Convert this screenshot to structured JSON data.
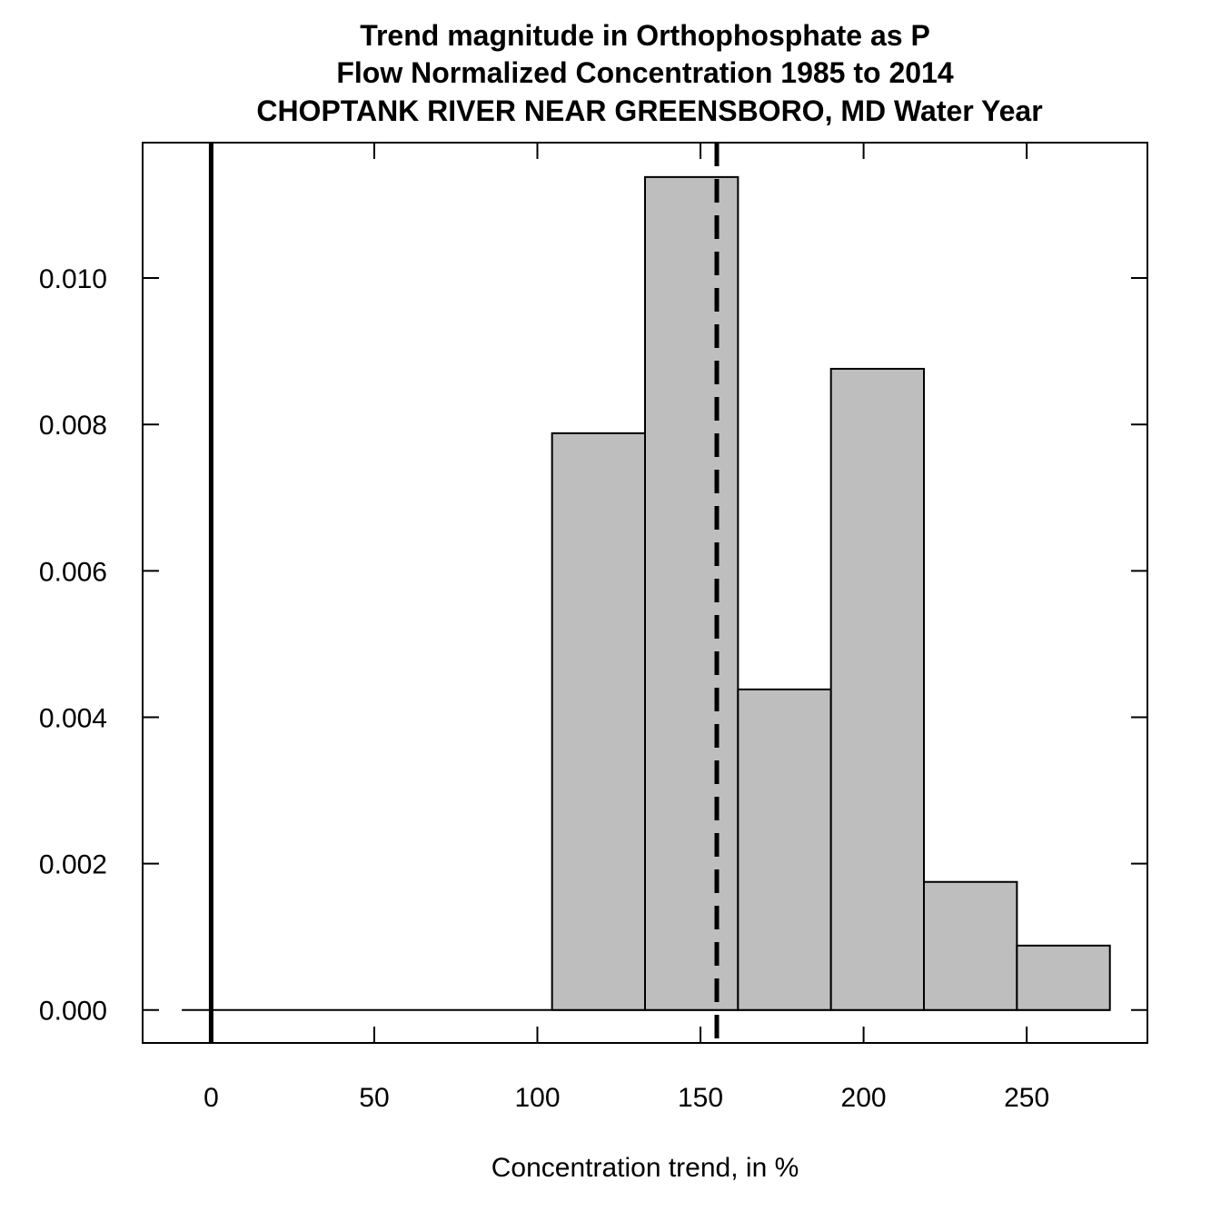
{
  "chart_data": {
    "type": "bar",
    "title_lines": [
      "Trend magnitude in Orthophosphate as P",
      "Flow Normalized Concentration 1985 to 2014",
      "CHOPTANK RIVER NEAR GREENSBORO, MD Water Year"
    ],
    "xlabel": "Concentration trend, in %",
    "ylabel": "",
    "x_ticks": [
      "0",
      "50",
      "100",
      "150",
      "200",
      "250"
    ],
    "y_ticks": [
      "0.000",
      "0.002",
      "0.004",
      "0.006",
      "0.008",
      "0.010"
    ],
    "xlim": [
      -21,
      287
    ],
    "ylim": [
      -0.00045,
      0.01185
    ],
    "bins": [
      {
        "x0": 104.5,
        "x1": 133.0,
        "density": 0.00788
      },
      {
        "x0": 133.0,
        "x1": 161.5,
        "density": 0.01138
      },
      {
        "x0": 161.5,
        "x1": 190.0,
        "density": 0.00438
      },
      {
        "x0": 190.0,
        "x1": 218.5,
        "density": 0.00876
      },
      {
        "x0": 218.5,
        "x1": 247.0,
        "density": 0.00175
      },
      {
        "x0": 247.0,
        "x1": 275.5,
        "density": 0.00088
      }
    ],
    "zero_line_x": 0,
    "mean_line_x": 155,
    "baseline_x_range": [
      -9,
      275.5
    ],
    "bar_fill": "#bebebe",
    "line_color": "#000000",
    "grid": false
  }
}
